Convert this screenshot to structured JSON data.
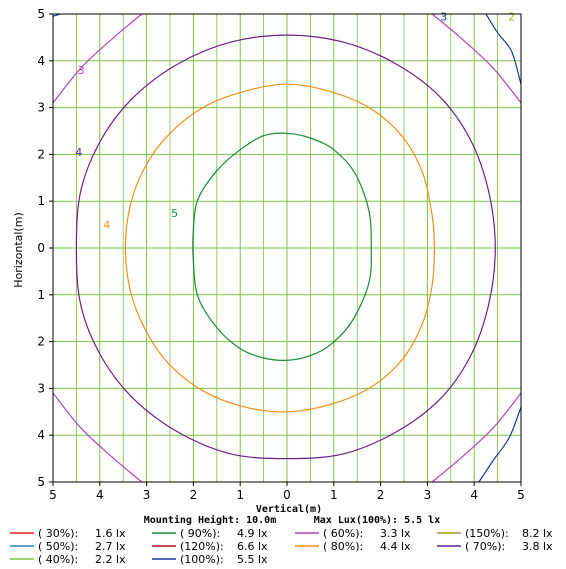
{
  "chart_data": {
    "type": "line",
    "xlabel": "Vertical(m)",
    "ylabel": "Horizontal(m)",
    "xlim": [
      -5,
      5
    ],
    "ylim": [
      -5,
      5
    ],
    "x_ticks": [
      "5",
      "4",
      "3",
      "2",
      "1",
      "0",
      "1",
      "2",
      "3",
      "4",
      "5"
    ],
    "y_ticks": [
      "5",
      "4",
      "3",
      "2",
      "1",
      "0",
      "1",
      "2",
      "3",
      "4",
      "5"
    ],
    "grid": true,
    "grid_color": "#7dc242",
    "mounting_height_text": "Mounting Height: 10.0m",
    "max_lux_text": "Max Lux(100%): 5.5 lx",
    "contours": [
      {
        "label": "5",
        "color": "#1a8a3a",
        "label_at": [
          -2.4,
          0.75
        ],
        "points": [
          [
            0,
            2.45
          ],
          [
            0.5,
            2.35
          ],
          [
            1.0,
            2.1
          ],
          [
            1.45,
            1.6
          ],
          [
            1.75,
            0.8
          ],
          [
            1.8,
            0
          ],
          [
            1.75,
            -0.75
          ],
          [
            1.4,
            -1.55
          ],
          [
            0.95,
            -2.05
          ],
          [
            0.5,
            -2.3
          ],
          [
            0,
            -2.4
          ],
          [
            -0.5,
            -2.35
          ],
          [
            -1.0,
            -2.15
          ],
          [
            -1.5,
            -1.7
          ],
          [
            -1.9,
            -1.05
          ],
          [
            -2.0,
            -0.3
          ],
          [
            -2.0,
            0.4
          ],
          [
            -1.9,
            1.05
          ],
          [
            -1.5,
            1.65
          ],
          [
            -1.0,
            2.1
          ],
          [
            -0.5,
            2.4
          ]
        ]
      },
      {
        "label": "4",
        "color": "#f0901e",
        "label_at": [
          -3.85,
          0.5
        ],
        "points": [
          [
            0,
            3.5
          ],
          [
            0.9,
            3.35
          ],
          [
            1.75,
            3.0
          ],
          [
            2.45,
            2.4
          ],
          [
            2.9,
            1.6
          ],
          [
            3.1,
            0.7
          ],
          [
            3.15,
            0
          ],
          [
            3.1,
            -0.8
          ],
          [
            2.9,
            -1.6
          ],
          [
            2.45,
            -2.4
          ],
          [
            1.75,
            -3.0
          ],
          [
            0.9,
            -3.35
          ],
          [
            0,
            -3.5
          ],
          [
            -0.9,
            -3.4
          ],
          [
            -1.8,
            -3.05
          ],
          [
            -2.55,
            -2.45
          ],
          [
            -3.05,
            -1.7
          ],
          [
            -3.35,
            -0.9
          ],
          [
            -3.45,
            0
          ],
          [
            -3.35,
            0.9
          ],
          [
            -3.05,
            1.7
          ],
          [
            -2.55,
            2.4
          ],
          [
            -1.8,
            3.0
          ],
          [
            -0.9,
            3.35
          ]
        ]
      },
      {
        "label": "4",
        "color": "#6b1f86",
        "label_at": [
          -4.45,
          2.05
        ],
        "points": [
          [
            0,
            4.55
          ],
          [
            1.2,
            4.4
          ],
          [
            2.3,
            3.95
          ],
          [
            3.25,
            3.25
          ],
          [
            3.9,
            2.35
          ],
          [
            4.3,
            1.25
          ],
          [
            4.45,
            0
          ],
          [
            4.3,
            -1.25
          ],
          [
            3.9,
            -2.35
          ],
          [
            3.25,
            -3.25
          ],
          [
            2.3,
            -3.95
          ],
          [
            1.2,
            -4.4
          ],
          [
            0,
            -4.5
          ],
          [
            -1.2,
            -4.4
          ],
          [
            -2.3,
            -3.95
          ],
          [
            -3.25,
            -3.25
          ],
          [
            -3.95,
            -2.35
          ],
          [
            -4.4,
            -1.25
          ],
          [
            -4.5,
            0
          ],
          [
            -4.4,
            1.25
          ],
          [
            -3.95,
            2.35
          ],
          [
            -3.25,
            3.25
          ],
          [
            -2.3,
            3.95
          ],
          [
            -1.2,
            4.4
          ]
        ]
      },
      {
        "label": "3",
        "color": "#b048b8",
        "label_at": [
          -4.4,
          3.8
        ],
        "points": [
          [
            -5,
            3.1
          ],
          [
            -4.4,
            3.85
          ],
          [
            -3.7,
            4.5
          ],
          [
            -3.1,
            5
          ]
        ]
      },
      {
        "label": "",
        "color": "#b048b8",
        "label_at": null,
        "points": [
          [
            3.1,
            5
          ],
          [
            3.7,
            4.5
          ],
          [
            4.4,
            3.85
          ],
          [
            5,
            3.1
          ]
        ]
      },
      {
        "label": "",
        "color": "#b048b8",
        "label_at": null,
        "points": [
          [
            -5,
            -3.1
          ],
          [
            -4.4,
            -3.85
          ],
          [
            -3.7,
            -4.5
          ],
          [
            -3.1,
            -5
          ]
        ]
      },
      {
        "label": "",
        "color": "#b048b8",
        "label_at": null,
        "points": [
          [
            3.1,
            -5
          ],
          [
            3.7,
            -4.5
          ],
          [
            4.4,
            -3.85
          ],
          [
            5,
            -3.1
          ]
        ]
      },
      {
        "label": "3",
        "color": "#1a3a9a",
        "label_at": [
          3.35,
          4.95
        ],
        "points": [
          [
            4.25,
            5
          ],
          [
            4.5,
            4.6
          ],
          [
            4.8,
            4.2
          ],
          [
            5,
            3.5
          ]
        ]
      },
      {
        "label": "",
        "color": "#1a3a9a",
        "label_at": null,
        "points": [
          [
            -5,
            4.95
          ],
          [
            -4.85,
            5
          ]
        ]
      },
      {
        "label": "",
        "color": "#1a3a9a",
        "label_at": null,
        "points": [
          [
            5,
            -3.4
          ],
          [
            4.75,
            -4.05
          ],
          [
            4.4,
            -4.55
          ],
          [
            4.1,
            -5
          ]
        ]
      },
      {
        "label": "2",
        "color": "#9ab82a",
        "label_at": [
          4.8,
          4.95
        ],
        "points": []
      }
    ],
    "legend": [
      [
        "( 30%):",
        "1.6 lx",
        "#e02020"
      ],
      [
        "( 90%):",
        "4.9 lx",
        "#1a8a3a"
      ],
      [
        "( 60%):",
        "3.3 lx",
        "#b048b8"
      ],
      [
        "(150%):",
        "8.2 lx",
        "#9a9a2a"
      ],
      [
        "( 50%):",
        "2.7 lx",
        "#1f8ab0"
      ],
      [
        "(120%):",
        "6.6 lx",
        "#a01818"
      ],
      [
        "( 80%):",
        "4.4 lx",
        "#f0901e"
      ],
      [
        "( 70%):",
        "3.8 lx",
        "#6b1f86"
      ],
      [
        "( 40%):",
        "2.2 lx",
        "#7dc242"
      ],
      [
        "(100%):",
        "5.5 lx",
        "#1a3a9a"
      ]
    ]
  }
}
